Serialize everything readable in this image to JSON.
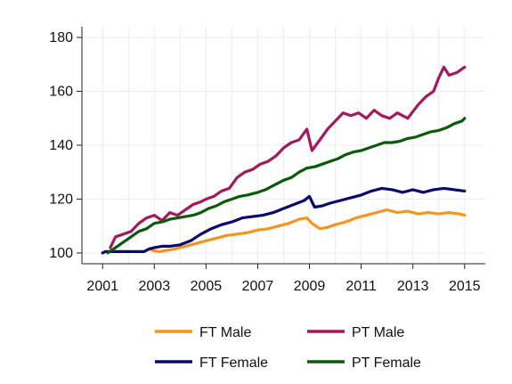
{
  "chart_data": {
    "type": "line",
    "title": "",
    "xlabel": "",
    "ylabel": "",
    "xlim": [
      2000.2,
      2015.8
    ],
    "ylim": [
      96,
      184
    ],
    "x_ticks": [
      2001,
      2003,
      2005,
      2007,
      2009,
      2011,
      2013,
      2015
    ],
    "y_ticks": [
      100,
      120,
      140,
      160,
      180
    ],
    "grid": true,
    "legend_position": "bottom",
    "series": [
      {
        "name": "FT Male",
        "color": "#F7941D",
        "points": [
          [
            2002.9,
            101
          ],
          [
            2003.2,
            100.5
          ],
          [
            2003.5,
            101
          ],
          [
            2003.8,
            101.5
          ],
          [
            2004.2,
            102.5
          ],
          [
            2004.6,
            103.5
          ],
          [
            2005.0,
            104.5
          ],
          [
            2005.4,
            105.5
          ],
          [
            2005.8,
            106.5
          ],
          [
            2006.2,
            107
          ],
          [
            2006.6,
            107.5
          ],
          [
            2007.0,
            108.5
          ],
          [
            2007.4,
            109
          ],
          [
            2007.8,
            110
          ],
          [
            2008.2,
            111
          ],
          [
            2008.6,
            112.5
          ],
          [
            2008.9,
            113
          ],
          [
            2009.1,
            111
          ],
          [
            2009.4,
            109
          ],
          [
            2009.7,
            109.5
          ],
          [
            2010.0,
            110.5
          ],
          [
            2010.4,
            111.5
          ],
          [
            2010.8,
            113
          ],
          [
            2011.2,
            114
          ],
          [
            2011.6,
            115
          ],
          [
            2012.0,
            116
          ],
          [
            2012.4,
            115
          ],
          [
            2012.8,
            115.5
          ],
          [
            2013.2,
            114.5
          ],
          [
            2013.6,
            115
          ],
          [
            2014.0,
            114.5
          ],
          [
            2014.4,
            115
          ],
          [
            2014.8,
            114.5
          ],
          [
            2015.0,
            114
          ]
        ]
      },
      {
        "name": "PT Male",
        "color": "#A3195B",
        "points": [
          [
            2001.3,
            102
          ],
          [
            2001.5,
            106
          ],
          [
            2001.8,
            107
          ],
          [
            2002.1,
            108
          ],
          [
            2002.4,
            111
          ],
          [
            2002.7,
            113
          ],
          [
            2003.0,
            114
          ],
          [
            2003.3,
            112
          ],
          [
            2003.6,
            115
          ],
          [
            2003.9,
            114
          ],
          [
            2004.2,
            116
          ],
          [
            2004.5,
            118
          ],
          [
            2004.8,
            119
          ],
          [
            2005.0,
            120
          ],
          [
            2005.3,
            121
          ],
          [
            2005.6,
            123
          ],
          [
            2005.9,
            124
          ],
          [
            2006.2,
            128
          ],
          [
            2006.5,
            130
          ],
          [
            2006.8,
            131
          ],
          [
            2007.1,
            133
          ],
          [
            2007.4,
            134
          ],
          [
            2007.7,
            136
          ],
          [
            2008.0,
            139
          ],
          [
            2008.3,
            141
          ],
          [
            2008.6,
            142
          ],
          [
            2008.9,
            146
          ],
          [
            2009.1,
            138
          ],
          [
            2009.4,
            142
          ],
          [
            2009.7,
            146
          ],
          [
            2010.0,
            149
          ],
          [
            2010.3,
            152
          ],
          [
            2010.6,
            151
          ],
          [
            2010.9,
            152
          ],
          [
            2011.2,
            150
          ],
          [
            2011.5,
            153
          ],
          [
            2011.8,
            151
          ],
          [
            2012.1,
            150
          ],
          [
            2012.4,
            152
          ],
          [
            2012.8,
            150
          ],
          [
            2013.2,
            155
          ],
          [
            2013.5,
            158
          ],
          [
            2013.8,
            160
          ],
          [
            2014.0,
            165
          ],
          [
            2014.2,
            169
          ],
          [
            2014.4,
            166
          ],
          [
            2014.7,
            167
          ],
          [
            2015.0,
            169
          ]
        ]
      },
      {
        "name": "FT Female",
        "color": "#0A0A6E",
        "points": [
          [
            2001.0,
            100
          ],
          [
            2001.1,
            100.5
          ],
          [
            2002.6,
            100.5
          ],
          [
            2002.8,
            101.5
          ],
          [
            2003.0,
            102
          ],
          [
            2003.3,
            102.5
          ],
          [
            2003.6,
            102.5
          ],
          [
            2004.0,
            103
          ],
          [
            2004.4,
            104.5
          ],
          [
            2004.8,
            107
          ],
          [
            2005.2,
            109
          ],
          [
            2005.6,
            110.5
          ],
          [
            2006.0,
            111.5
          ],
          [
            2006.4,
            113
          ],
          [
            2006.8,
            113.5
          ],
          [
            2007.2,
            114
          ],
          [
            2007.6,
            115
          ],
          [
            2008.0,
            116.5
          ],
          [
            2008.4,
            118
          ],
          [
            2008.8,
            119.5
          ],
          [
            2009.0,
            121
          ],
          [
            2009.2,
            117
          ],
          [
            2009.5,
            117.5
          ],
          [
            2009.8,
            118.5
          ],
          [
            2010.2,
            119.5
          ],
          [
            2010.6,
            120.5
          ],
          [
            2011.0,
            121.5
          ],
          [
            2011.4,
            123
          ],
          [
            2011.8,
            124
          ],
          [
            2012.2,
            123.5
          ],
          [
            2012.6,
            122.5
          ],
          [
            2013.0,
            123.5
          ],
          [
            2013.4,
            122.5
          ],
          [
            2013.8,
            123.5
          ],
          [
            2014.2,
            124
          ],
          [
            2014.6,
            123.5
          ],
          [
            2015.0,
            123
          ]
        ]
      },
      {
        "name": "PT Female",
        "color": "#0A5A0A",
        "points": [
          [
            2001.2,
            100
          ],
          [
            2001.5,
            102
          ],
          [
            2001.8,
            104
          ],
          [
            2002.1,
            106
          ],
          [
            2002.4,
            108
          ],
          [
            2002.7,
            109
          ],
          [
            2003.0,
            111
          ],
          [
            2003.3,
            111.5
          ],
          [
            2003.6,
            112.5
          ],
          [
            2003.9,
            113
          ],
          [
            2004.2,
            113.5
          ],
          [
            2004.5,
            114
          ],
          [
            2004.8,
            115
          ],
          [
            2005.1,
            116.5
          ],
          [
            2005.4,
            117.5
          ],
          [
            2005.7,
            119
          ],
          [
            2006.0,
            120
          ],
          [
            2006.3,
            121
          ],
          [
            2006.6,
            121.5
          ],
          [
            2007.0,
            122.5
          ],
          [
            2007.3,
            123.5
          ],
          [
            2007.6,
            125
          ],
          [
            2008.0,
            127
          ],
          [
            2008.3,
            128
          ],
          [
            2008.6,
            130
          ],
          [
            2008.9,
            131.5
          ],
          [
            2009.2,
            132
          ],
          [
            2009.5,
            133
          ],
          [
            2009.8,
            134
          ],
          [
            2010.1,
            135
          ],
          [
            2010.4,
            136.5
          ],
          [
            2010.7,
            137.5
          ],
          [
            2011.0,
            138
          ],
          [
            2011.3,
            139
          ],
          [
            2011.6,
            140
          ],
          [
            2011.9,
            141
          ],
          [
            2012.2,
            141
          ],
          [
            2012.5,
            141.5
          ],
          [
            2012.8,
            142.5
          ],
          [
            2013.1,
            143
          ],
          [
            2013.4,
            144
          ],
          [
            2013.7,
            145
          ],
          [
            2014.0,
            145.5
          ],
          [
            2014.3,
            146.5
          ],
          [
            2014.6,
            148
          ],
          [
            2014.9,
            149
          ],
          [
            2015.0,
            150
          ]
        ]
      }
    ]
  }
}
